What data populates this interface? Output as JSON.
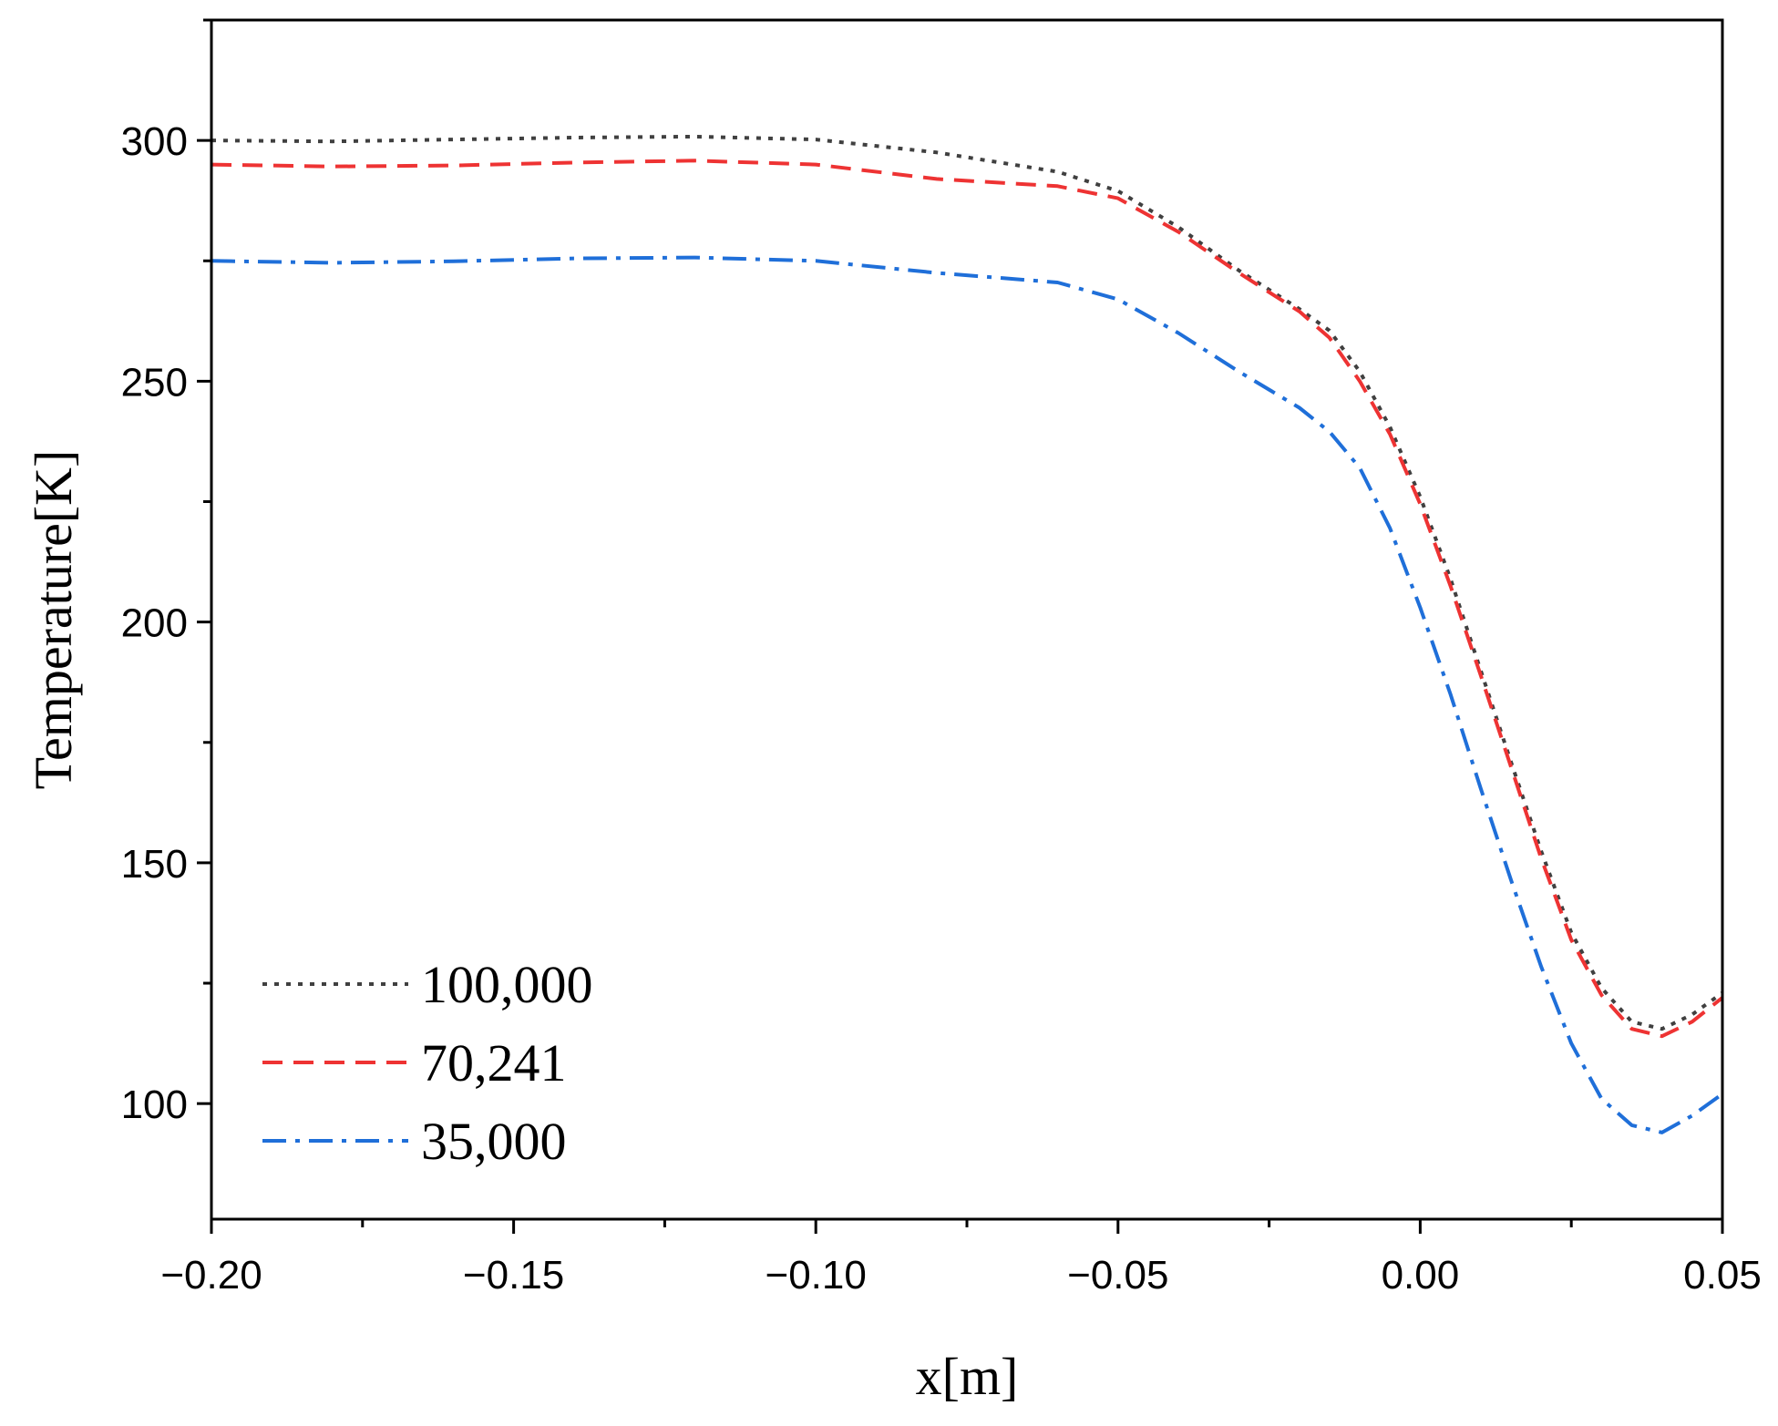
{
  "chart_data": {
    "type": "line",
    "title": "",
    "xlabel": "x[m]",
    "ylabel": "Temperature[K]",
    "xlim": [
      -0.2,
      0.05
    ],
    "ylim": [
      76,
      325
    ],
    "xticks": [
      -0.2,
      -0.15,
      -0.1,
      -0.05,
      0.0,
      0.05
    ],
    "xtick_labels": [
      "−0.20",
      "−0.15",
      "−0.10",
      "−0.05",
      "0.00",
      "0.05"
    ],
    "yticks": [
      100,
      150,
      200,
      250,
      300
    ],
    "ytick_labels": [
      "100",
      "150",
      "200",
      "250",
      "300"
    ],
    "legend_position": "bottom-left",
    "series": [
      {
        "name": "100,000",
        "color": "#404040",
        "style": "dotted",
        "x": [
          -0.2,
          -0.18,
          -0.16,
          -0.14,
          -0.12,
          -0.1,
          -0.08,
          -0.06,
          -0.05,
          -0.04,
          -0.03,
          -0.02,
          -0.015,
          -0.01,
          -0.005,
          0.0,
          0.005,
          0.01,
          0.015,
          0.02,
          0.025,
          0.03,
          0.035,
          0.04,
          0.045,
          0.05
        ],
        "y": [
          300.0,
          299.8,
          300.2,
          300.6,
          300.8,
          300.2,
          297.5,
          293.5,
          289.5,
          282.0,
          273.0,
          265.0,
          260.5,
          252.0,
          240.5,
          226.0,
          209.0,
          190.0,
          171.0,
          152.5,
          135.5,
          124.0,
          117.0,
          115.5,
          118.5,
          123.0
        ]
      },
      {
        "name": "70,241",
        "color": "#ee3333",
        "style": "dashed",
        "x": [
          -0.2,
          -0.18,
          -0.16,
          -0.14,
          -0.12,
          -0.1,
          -0.08,
          -0.06,
          -0.05,
          -0.04,
          -0.03,
          -0.02,
          -0.015,
          -0.01,
          -0.005,
          0.0,
          0.005,
          0.01,
          0.015,
          0.02,
          0.025,
          0.03,
          0.035,
          0.04,
          0.045,
          0.05
        ],
        "y": [
          295.0,
          294.6,
          294.8,
          295.4,
          295.8,
          295.0,
          292.0,
          290.5,
          288.0,
          281.0,
          272.5,
          264.5,
          259.0,
          250.0,
          239.0,
          224.5,
          207.5,
          189.0,
          170.0,
          151.0,
          134.0,
          122.5,
          115.5,
          114.0,
          117.0,
          122.0
        ]
      },
      {
        "name": "35,000",
        "color": "#1f6fd9",
        "style": "dashdot",
        "x": [
          -0.2,
          -0.18,
          -0.16,
          -0.14,
          -0.12,
          -0.1,
          -0.08,
          -0.06,
          -0.05,
          -0.04,
          -0.03,
          -0.02,
          -0.015,
          -0.01,
          -0.005,
          0.0,
          0.005,
          0.01,
          0.015,
          0.02,
          0.025,
          0.03,
          0.035,
          0.04,
          0.045,
          0.05
        ],
        "y": [
          275.0,
          274.6,
          274.9,
          275.5,
          275.7,
          275.0,
          272.5,
          270.5,
          267.0,
          260.0,
          252.0,
          244.5,
          239.5,
          232.0,
          219.5,
          203.0,
          185.0,
          165.5,
          146.5,
          128.5,
          112.5,
          101.0,
          95.5,
          94.0,
          97.5,
          102.0
        ]
      }
    ]
  }
}
